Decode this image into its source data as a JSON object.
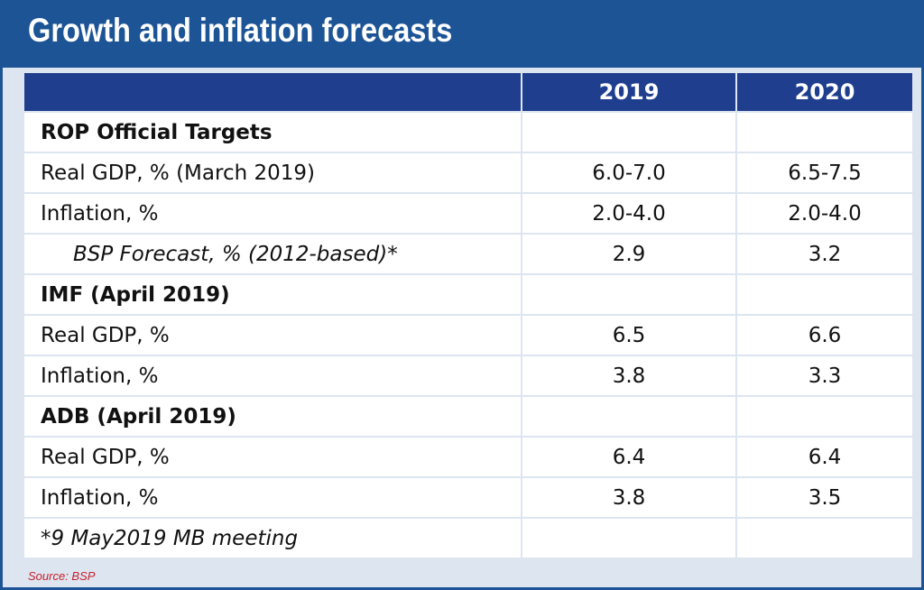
{
  "title": "Growth and inflation forecasts",
  "table": {
    "headers": [
      "",
      "2019",
      "2020"
    ],
    "rows": [
      {
        "type": "section",
        "label": "ROP Official Targets",
        "v2019": "",
        "v2020": ""
      },
      {
        "type": "data",
        "label": "Real GDP, % (March 2019)",
        "v2019": "6.0-7.0",
        "v2020": "6.5-7.5"
      },
      {
        "type": "data",
        "label": "Inflation, %",
        "v2019": "2.0-4.0",
        "v2020": "2.0-4.0"
      },
      {
        "type": "sub",
        "label": "BSP Forecast, % (2012-based)*",
        "v2019": "2.9",
        "v2020": "3.2"
      },
      {
        "type": "section",
        "label": "IMF  (April 2019)",
        "v2019": "",
        "v2020": ""
      },
      {
        "type": "data",
        "label": "Real GDP, %",
        "v2019": "6.5",
        "v2020": "6.6"
      },
      {
        "type": "data",
        "label": "Inflation, %",
        "v2019": "3.8",
        "v2020": "3.3"
      },
      {
        "type": "section",
        "label": "ADB  (April 2019)",
        "v2019": "",
        "v2020": ""
      },
      {
        "type": "data",
        "label": "Real GDP, %",
        "v2019": "6.4",
        "v2020": "6.4"
      },
      {
        "type": "data",
        "label": "Inflation, %",
        "v2019": "3.8",
        "v2020": "3.5"
      },
      {
        "type": "note",
        "label": "*9 May2019 MB meeting",
        "v2019": "",
        "v2020": ""
      }
    ]
  },
  "source": "Source: BSP",
  "colors": {
    "title_bar": "#1c5496",
    "header": "#1f3f8e",
    "background": "#dde5f1",
    "source_text": "#c8202a"
  }
}
